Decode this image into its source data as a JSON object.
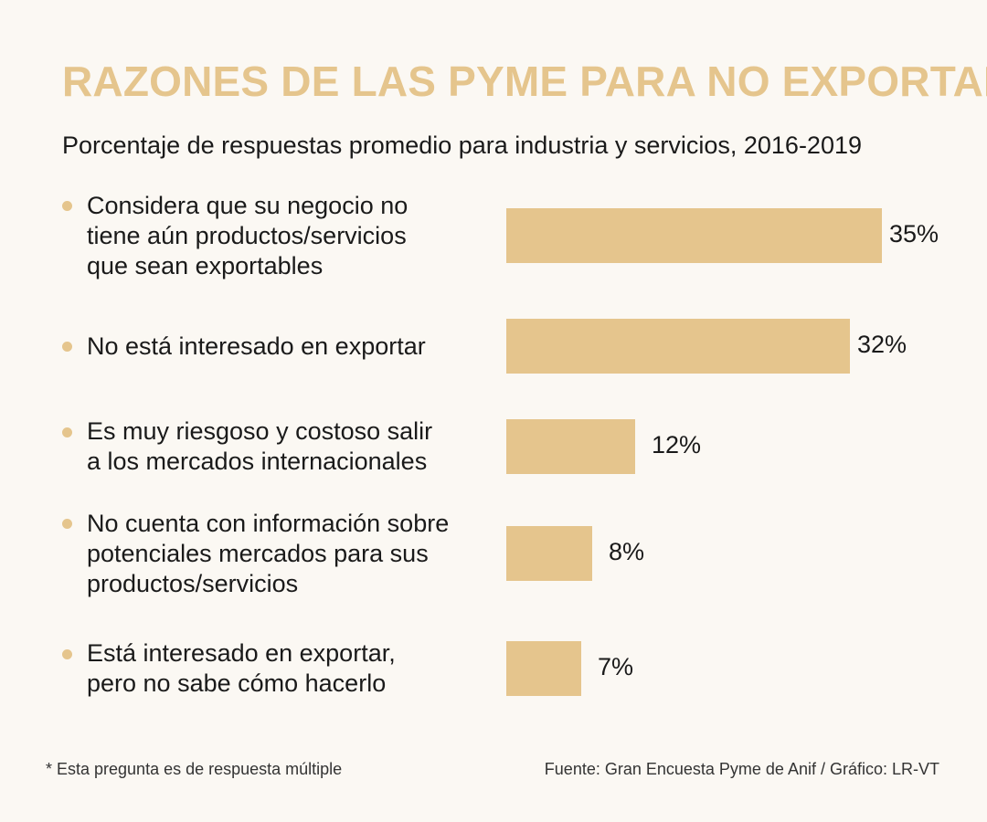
{
  "header": {
    "title": "RAZONES DE LAS PYME PARA NO EXPORTAR*",
    "subtitle": "Porcentaje de respuestas promedio para industria y servicios, 2016-2019"
  },
  "chart_data": {
    "type": "bar",
    "orientation": "horizontal",
    "categories": [
      [
        "Considera que su negocio no",
        "tiene aún productos/servicios",
        "que sean exportables"
      ],
      [
        "No está interesado en exportar"
      ],
      [
        "Es muy riesgoso y costoso salir",
        "a los mercados internacionales"
      ],
      [
        "No cuenta con información sobre",
        "potenciales mercados para sus",
        "productos/servicios"
      ],
      [
        "Está interesado en exportar,",
        "pero no sabe cómo hacerlo"
      ]
    ],
    "values": [
      35,
      32,
      12,
      8,
      7
    ],
    "value_labels": [
      "35%",
      "32%",
      "12%",
      "8%",
      "7%"
    ],
    "unit": "%",
    "bar_color": "#e5c58d",
    "xlabel": "",
    "ylabel": "",
    "xlim": [
      0,
      35
    ]
  },
  "footer": {
    "footnote": "* Esta pregunta es de respuesta múltiple",
    "source": "Fuente: Gran Encuesta Pyme de Anif / Gráfico: LR-VT"
  }
}
